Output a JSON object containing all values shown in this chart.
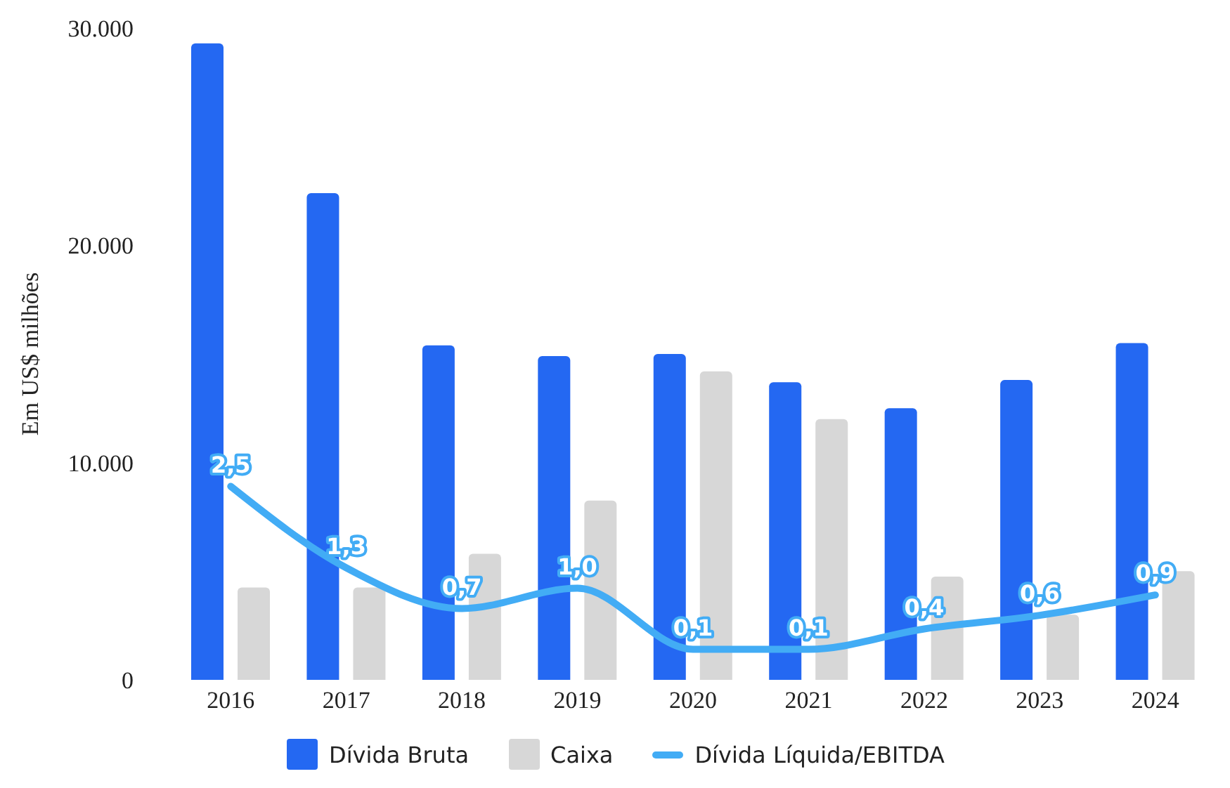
{
  "chart_data": {
    "type": "bar",
    "ylabel": "Em US$ milhões",
    "categories": [
      "2016",
      "2017",
      "2018",
      "2019",
      "2020",
      "2021",
      "2022",
      "2023",
      "2024"
    ],
    "ylim": [
      0,
      30000
    ],
    "yticks": [
      {
        "value": 0,
        "label": "0"
      },
      {
        "value": 10000,
        "label": "10.000"
      },
      {
        "value": 20000,
        "label": "20.000"
      },
      {
        "value": 30000,
        "label": "30.000"
      }
    ],
    "grid": false,
    "legend": "bottom",
    "series": [
      {
        "name": "Dívida Bruta",
        "color": "#2468f2",
        "values": [
          29300,
          22400,
          15400,
          14900,
          15000,
          13700,
          12500,
          13800,
          15500
        ]
      },
      {
        "name": "Caixa",
        "color": "#d7d7d7",
        "values": [
          4250,
          4250,
          5800,
          8250,
          14200,
          12000,
          4750,
          3000,
          5000
        ]
      },
      {
        "name": "Dívida Líquida/EBITDA",
        "type": "line",
        "axis": "y2",
        "color": "#42acf5",
        "values": [
          2.5,
          1.3,
          0.7,
          1.0,
          0.1,
          0.1,
          0.4,
          0.6,
          0.9
        ],
        "value_labels": [
          "2,5",
          "1,3",
          "0,7",
          "1,0",
          "0,1",
          "0,1",
          "0,4",
          "0,6",
          "0,9"
        ]
      }
    ]
  }
}
